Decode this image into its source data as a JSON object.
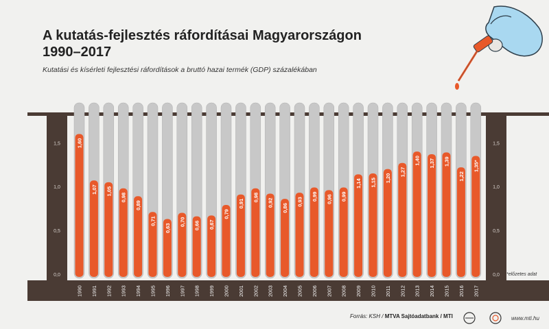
{
  "title_line1": "A kutatás-fejlesztés ráfordításai Magyarországon",
  "title_line2": "1990–2017",
  "subtitle": "Kutatási és kísérleti fejlesztési ráfordítások a bruttó hazai termék (GDP) százalékában",
  "note": "*előzetes adat",
  "footer": {
    "source_prefix": "Forrás: KSH / ",
    "source_agency": "MTVA Sajtóadatbank / MTI",
    "url": "www.mti.hu"
  },
  "colors": {
    "bar": "#e8592a",
    "tube": "#c8c8c8",
    "frame": "#4a3b34",
    "background": "#f1f1ef"
  },
  "chart_data": {
    "type": "bar",
    "categories": [
      "1990",
      "1991",
      "1992",
      "1993",
      "1994",
      "1995",
      "1996",
      "1997",
      "1998",
      "1999",
      "2000",
      "2001",
      "2002",
      "2003",
      "2004",
      "2005",
      "2006",
      "2007",
      "2008",
      "2009",
      "2010",
      "2011",
      "2012",
      "2013",
      "2014",
      "2015",
      "2016",
      "2017"
    ],
    "values": [
      1.6,
      1.07,
      1.05,
      0.98,
      0.89,
      0.71,
      0.63,
      0.7,
      0.66,
      0.67,
      0.79,
      0.91,
      0.98,
      0.92,
      0.86,
      0.93,
      0.99,
      0.96,
      0.99,
      1.14,
      1.15,
      1.2,
      1.27,
      1.4,
      1.37,
      1.39,
      1.22,
      1.35
    ],
    "value_labels": [
      "1,60",
      "1,07",
      "1,05",
      "0,98",
      "0,89",
      "0,71",
      "0,63",
      "0,70",
      "0,66",
      "0,67",
      "0,79",
      "0,91",
      "0,98",
      "0,92",
      "0,86",
      "0,93",
      "0,99",
      "0,96",
      "0,99",
      "1,14",
      "1,15",
      "1,20",
      "1,27",
      "1,40",
      "1,37",
      "1,39",
      "1,22",
      "1,35*"
    ],
    "yticks": [
      "0,0",
      "0,5",
      "1,0",
      "1,5"
    ],
    "ylim": [
      0,
      1.8
    ],
    "grid": false,
    "legend": "none"
  }
}
